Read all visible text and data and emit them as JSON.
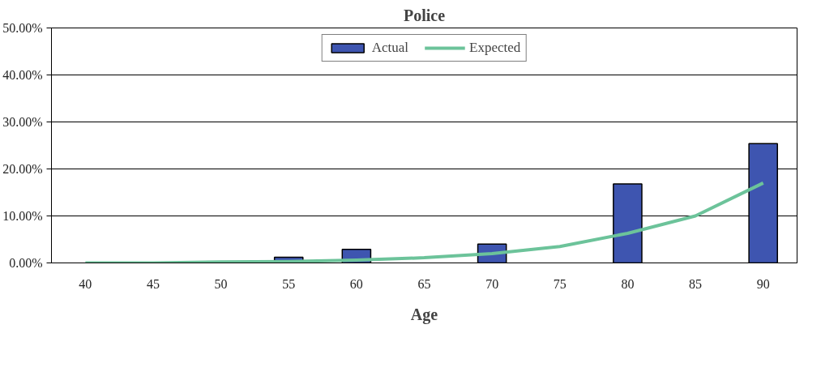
{
  "chart_data": {
    "type": "bar",
    "title": "Police",
    "xlabel": "Age",
    "categories": [
      "40",
      "45",
      "50",
      "55",
      "60",
      "65",
      "70",
      "75",
      "80",
      "85",
      "90"
    ],
    "series": [
      {
        "name": "Actual",
        "color": "#3e55b0",
        "values": [
          null,
          null,
          null,
          1.2,
          2.9,
          null,
          4.0,
          null,
          16.8,
          null,
          25.4
        ]
      },
      {
        "name": "Expected",
        "type": "line",
        "color": "#6cc39a",
        "values": [
          0,
          0,
          0.2,
          0.3,
          0.6,
          1.1,
          2.0,
          3.5,
          6.3,
          10.0,
          17.0
        ]
      }
    ],
    "ylim": [
      0,
      50
    ],
    "yticks": [
      {
        "value": 0,
        "label": "0.00%"
      },
      {
        "value": 10,
        "label": "10.00%"
      },
      {
        "value": 20,
        "label": "20.00%"
      },
      {
        "value": 30,
        "label": "30.00%"
      },
      {
        "value": 40,
        "label": "40.00%"
      },
      {
        "value": 50,
        "label": "50.00%"
      }
    ],
    "grid": "y",
    "legend": "top"
  }
}
